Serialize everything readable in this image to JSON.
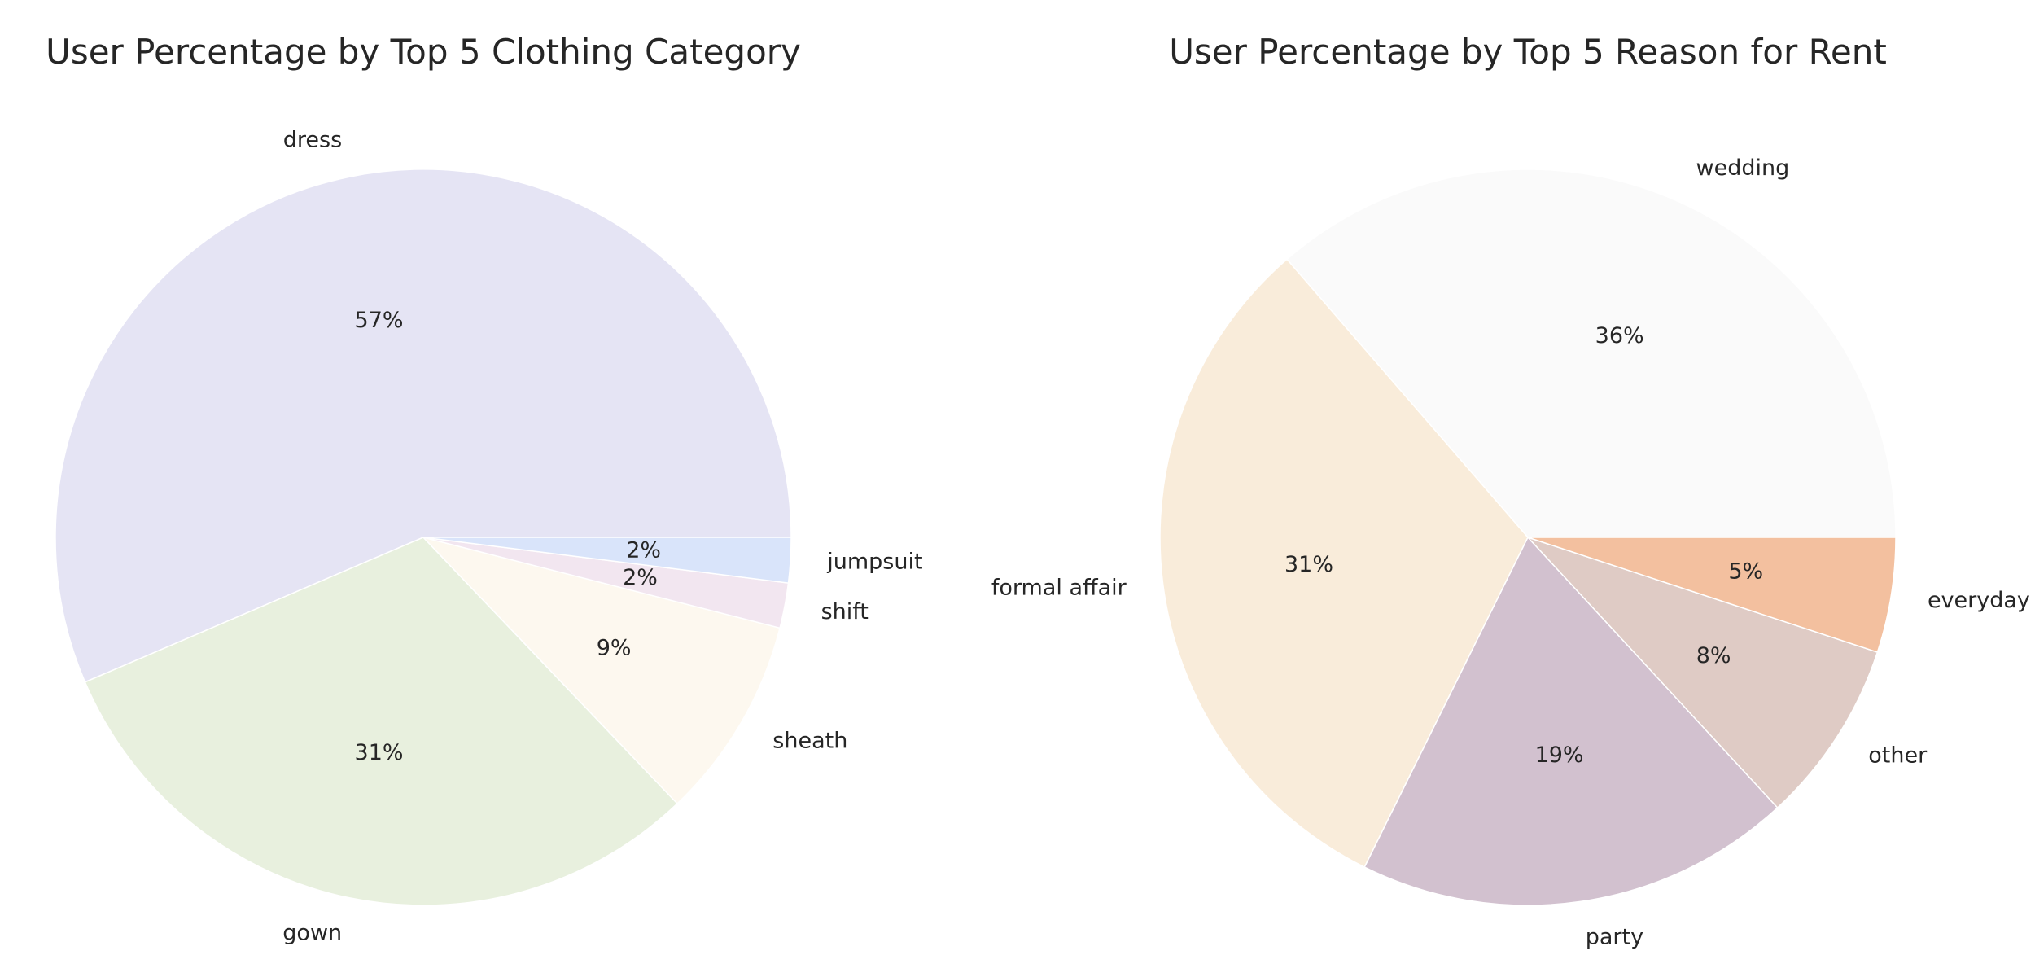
{
  "chart_data": [
    {
      "type": "pie",
      "title": "User Percentage by Top 5 Clothing Category",
      "start_angle_deg": 0,
      "direction": "counterclockwise",
      "slices": [
        {
          "label": "dress",
          "value": 57,
          "pct_label": "57%",
          "color": "#e5e4f4"
        },
        {
          "label": "gown",
          "value": 31,
          "pct_label": "31%",
          "color": "#e8f0de"
        },
        {
          "label": "sheath",
          "value": 9,
          "pct_label": "9%",
          "color": "#fdf8ef"
        },
        {
          "label": "shift",
          "value": 2,
          "pct_label": "2%",
          "color": "#f2e6f0"
        },
        {
          "label": "jumpsuit",
          "value": 2,
          "pct_label": "2%",
          "color": "#d9e4fa"
        }
      ]
    },
    {
      "type": "pie",
      "title": "User Percentage by Top 5 Reason for Rent",
      "start_angle_deg": 0,
      "direction": "counterclockwise",
      "slices": [
        {
          "label": "wedding",
          "value": 36,
          "pct_label": "36%",
          "color": "#fafafa"
        },
        {
          "label": "formal affair",
          "value": 31,
          "pct_label": "31%",
          "color": "#f9ecda"
        },
        {
          "label": "party",
          "value": 19,
          "pct_label": "19%",
          "color": "#d2c1cf"
        },
        {
          "label": "other",
          "value": 8,
          "pct_label": "8%",
          "color": "#dfcbc5"
        },
        {
          "label": "everyday",
          "value": 5,
          "pct_label": "5%",
          "color": "#f3c09f"
        }
      ]
    }
  ]
}
